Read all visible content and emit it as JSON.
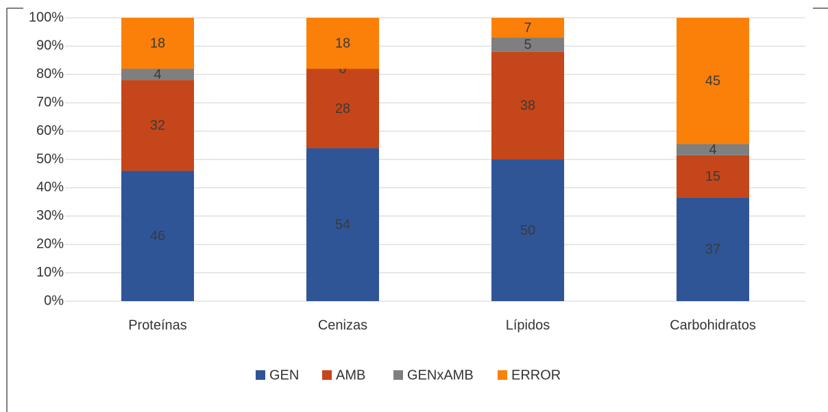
{
  "chart_data": {
    "type": "bar",
    "stacking": "percent",
    "categories": [
      "Proteínas",
      "Cenizas",
      "Lípidos",
      "Carbohidratos"
    ],
    "series": [
      {
        "name": "GEN",
        "color": "#2f5597",
        "values": [
          46,
          54,
          50,
          37
        ]
      },
      {
        "name": "AMB",
        "color": "#c5461a",
        "values": [
          32,
          28,
          38,
          15
        ]
      },
      {
        "name": "GENxAMB",
        "color": "#7f7f7f",
        "values": [
          4,
          0,
          5,
          4
        ]
      },
      {
        "name": "ERROR",
        "color": "#fb8009",
        "values": [
          18,
          18,
          7,
          45
        ]
      }
    ],
    "ylim": [
      0,
      100
    ],
    "yticks": [
      {
        "value": 0,
        "label": "0%"
      },
      {
        "value": 10,
        "label": "10%"
      },
      {
        "value": 20,
        "label": "20%"
      },
      {
        "value": 30,
        "label": "30%"
      },
      {
        "value": 40,
        "label": "40%"
      },
      {
        "value": 50,
        "label": "50%"
      },
      {
        "value": 60,
        "label": "60%"
      },
      {
        "value": 70,
        "label": "70%"
      },
      {
        "value": 80,
        "label": "80%"
      },
      {
        "value": 90,
        "label": "90%"
      },
      {
        "value": 100,
        "label": "100%"
      }
    ],
    "grid": true,
    "legend": "bottom"
  }
}
